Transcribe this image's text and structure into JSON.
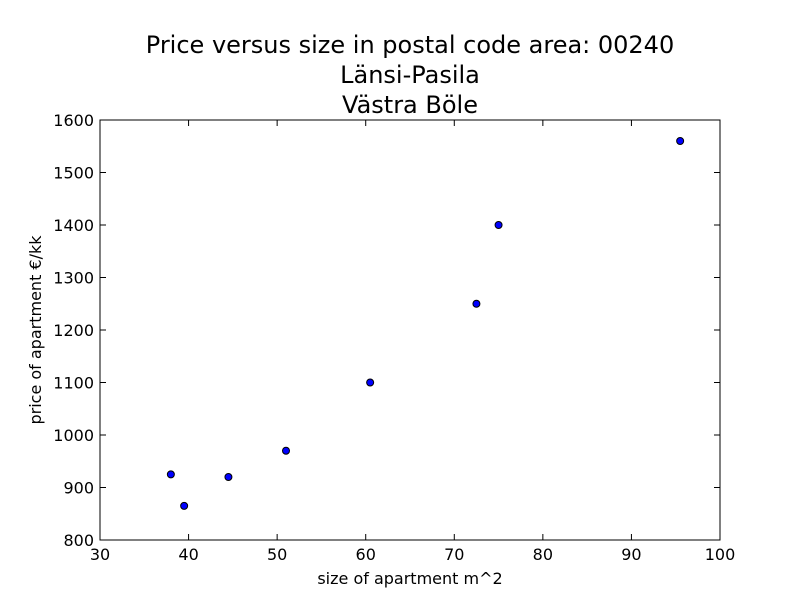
{
  "chart_data": {
    "type": "scatter",
    "title": "Price versus size in postal code area: 00240",
    "subtitle_lines": [
      "Länsi-Pasila",
      "Västra Böle"
    ],
    "xlabel": "size of apartment m^2",
    "ylabel": "price of apartment €/kk",
    "xlim": [
      30,
      100
    ],
    "ylim": [
      800,
      1600
    ],
    "xticks": [
      30,
      40,
      50,
      60,
      70,
      80,
      90,
      100
    ],
    "yticks": [
      800,
      900,
      1000,
      1100,
      1200,
      1300,
      1400,
      1500,
      1600
    ],
    "grid": false,
    "series": [
      {
        "color": "#0000ff",
        "x": [
          38.0,
          39.5,
          44.5,
          51.0,
          60.5,
          72.5,
          75.0,
          95.5
        ],
        "y": [
          925,
          865,
          920,
          970,
          1100,
          1250,
          1400,
          1560
        ]
      }
    ]
  }
}
